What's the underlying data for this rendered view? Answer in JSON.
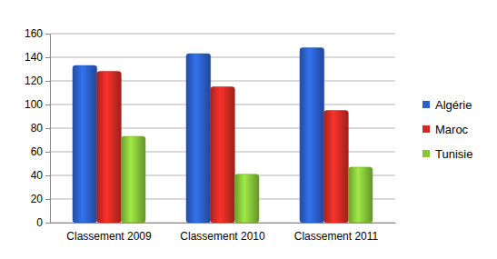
{
  "chart_data": {
    "type": "bar",
    "categories": [
      "Classement 2009",
      "Classement 2010",
      "Classement 2011"
    ],
    "series": [
      {
        "name": "Algérie",
        "color": "#2b5fc9",
        "values": [
          133,
          143,
          148
        ]
      },
      {
        "name": "Maroc",
        "color": "#d12a24",
        "values": [
          128,
          115,
          95
        ]
      },
      {
        "name": "Tunisie",
        "color": "#86c43a",
        "values": [
          73,
          41,
          47
        ]
      }
    ],
    "ylim": [
      0,
      160
    ],
    "yticks": [
      0,
      20,
      40,
      60,
      80,
      100,
      120,
      140,
      160
    ],
    "grid": true,
    "legend": "right"
  }
}
